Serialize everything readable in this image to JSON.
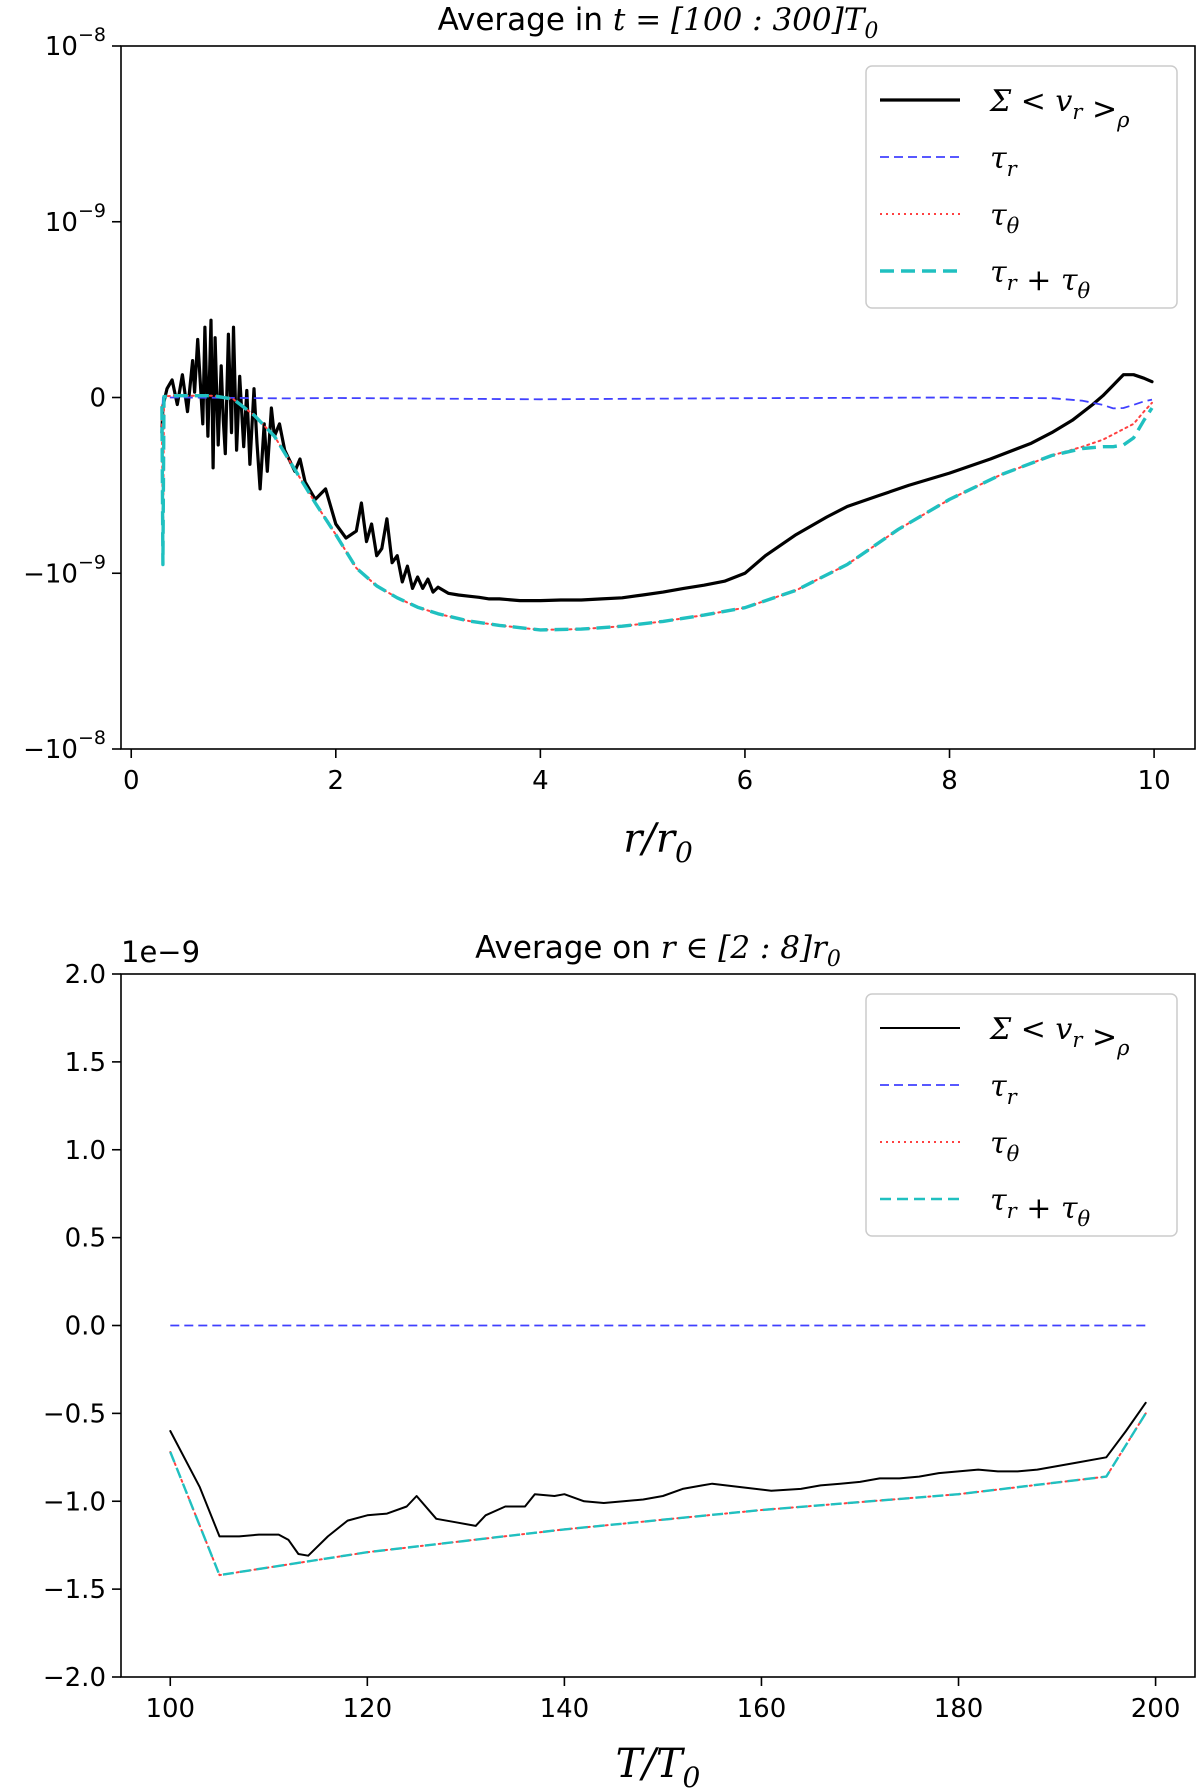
{
  "chart_data": [
    {
      "type": "line",
      "title_prefix": "Average in ",
      "title_math": "t = [100 : 300]T",
      "title_sub": "0",
      "xlabel_main": "r/r",
      "xlabel_sub": "0",
      "xlim": [
        -0.1,
        10.4
      ],
      "ylim": [
        -1e-08,
        1e-08
      ],
      "yscale": "symlog",
      "linthresh": 1e-09,
      "xticks": [
        0,
        2,
        4,
        6,
        8,
        10
      ],
      "xtick_labels": [
        "0",
        "2",
        "4",
        "6",
        "8",
        "10"
      ],
      "ytick_labels": [
        {
          "base": "10",
          "exp": "−8",
          "value": 1e-08
        },
        {
          "base": "10",
          "exp": "−9",
          "value": 1e-09
        },
        {
          "base": "0",
          "exp": "",
          "value": 0
        },
        {
          "base": "−10",
          "exp": "−9",
          "value": -1e-09
        },
        {
          "base": "−10",
          "exp": "−8",
          "value": -1e-08
        }
      ],
      "legend_position": "top-right",
      "legend": [
        {
          "label": "Σ < v_r >_ρ",
          "color": "#000000",
          "dash": "solid"
        },
        {
          "label": "τ_r",
          "color": "#4040ff",
          "dash": "dashed"
        },
        {
          "label": "τ_θ",
          "color": "#ff4040",
          "dash": "dotted"
        },
        {
          "label": "τ_r + τ_θ",
          "color": "#20c0c0",
          "dash": "dashed"
        }
      ],
      "series": [
        {
          "name": "Σ<v_r>_ρ",
          "color": "#000000",
          "x": [
            0.3,
            0.31,
            0.35,
            0.4,
            0.45,
            0.5,
            0.55,
            0.6,
            0.62,
            0.65,
            0.7,
            0.72,
            0.75,
            0.78,
            0.8,
            0.82,
            0.85,
            0.88,
            0.9,
            0.92,
            0.95,
            0.98,
            1.0,
            1.03,
            1.06,
            1.1,
            1.13,
            1.16,
            1.2,
            1.23,
            1.26,
            1.3,
            1.33,
            1.37,
            1.4,
            1.45,
            1.5,
            1.55,
            1.6,
            1.65,
            1.7,
            1.8,
            1.9,
            2.0,
            2.1,
            2.2,
            2.25,
            2.3,
            2.35,
            2.4,
            2.45,
            2.5,
            2.55,
            2.6,
            2.65,
            2.7,
            2.75,
            2.8,
            2.85,
            2.9,
            2.95,
            3.0,
            3.1,
            3.2,
            3.3,
            3.4,
            3.5,
            3.6,
            3.8,
            4.0,
            4.2,
            4.4,
            4.6,
            4.8,
            5.0,
            5.2,
            5.4,
            5.6,
            5.8,
            6.0,
            6.2,
            6.5,
            6.8,
            7.0,
            7.3,
            7.6,
            8.0,
            8.4,
            8.8,
            9.0,
            9.2,
            9.4,
            9.5,
            9.6,
            9.7,
            9.8,
            9.9,
            9.98
          ],
          "values": [
            -2e-10,
            -5e-11,
            5e-11,
            1e-10,
            -4e-11,
            1.3e-10,
            -8e-11,
            2.1e-10,
            3e-11,
            3.3e-10,
            -1.5e-10,
            4e-10,
            -2.2e-10,
            4.4e-10,
            -4e-10,
            3.4e-10,
            -2.7e-10,
            1.8e-10,
            -1.3e-10,
            -3.2e-10,
            3.6e-10,
            -2e-10,
            4e-10,
            -3e-10,
            1.2e-10,
            -2.8e-10,
            4e-11,
            -3.8e-10,
            5e-11,
            -2.6e-10,
            -5.2e-10,
            -1.5e-10,
            -4.2e-10,
            -6e-11,
            -2.2e-10,
            -1.5e-10,
            -3e-10,
            -3.6e-10,
            -4.2e-10,
            -3.5e-10,
            -4.8e-10,
            -5.8e-10,
            -5.2e-10,
            -7.2e-10,
            -8e-10,
            -7.6e-10,
            -6e-10,
            -8.2e-10,
            -7.2e-10,
            -9e-10,
            -8.6e-10,
            -6.9e-10,
            -9.4e-10,
            -9e-10,
            -1.12e-09,
            -9.6e-10,
            -1.22e-09,
            -1.05e-09,
            -1.22e-09,
            -1.08e-09,
            -1.28e-09,
            -1.2e-09,
            -1.3e-09,
            -1.33e-09,
            -1.35e-09,
            -1.37e-09,
            -1.4e-09,
            -1.4e-09,
            -1.43e-09,
            -1.43e-09,
            -1.42e-09,
            -1.42e-09,
            -1.4e-09,
            -1.38e-09,
            -1.33e-09,
            -1.28e-09,
            -1.22e-09,
            -1.17e-09,
            -1.11e-09,
            -1e-09,
            -9e-10,
            -7.8e-10,
            -6.8e-10,
            -6.2e-10,
            -5.6e-10,
            -5e-10,
            -4.3e-10,
            -3.5e-10,
            -2.6e-10,
            -2e-10,
            -1.3e-10,
            -4e-11,
            1e-11,
            7e-11,
            1.3e-10,
            1.3e-10,
            1.1e-10,
            9e-11
          ]
        },
        {
          "name": "τ_r",
          "color": "#4040ff",
          "x": [
            0.3,
            0.31,
            0.35,
            0.5,
            1.0,
            1.5,
            2.0,
            4.0,
            6.0,
            8.0,
            9.0,
            9.3,
            9.5,
            9.6,
            9.7,
            9.8,
            9.9,
            9.98
          ],
          "values": [
            -2e-10,
            0,
            0,
            0,
            -2e-12,
            -5e-12,
            -3e-12,
            -1e-11,
            -4e-12,
            0,
            -4e-12,
            -1.8e-11,
            -4.2e-11,
            -6.2e-11,
            -6e-11,
            -4.2e-11,
            -2.2e-11,
            -1.2e-11
          ]
        },
        {
          "name": "τ_θ",
          "color": "#ff4040",
          "x": [
            0.3,
            0.31,
            0.32,
            0.4,
            0.6,
            0.8,
            1.0,
            1.2,
            1.4,
            1.6,
            1.8,
            2.0,
            2.2,
            2.4,
            2.6,
            2.8,
            3.0,
            3.3,
            3.6,
            4.0,
            4.4,
            4.8,
            5.2,
            5.6,
            6.0,
            6.5,
            7.0,
            7.5,
            8.0,
            8.5,
            9.0,
            9.3,
            9.5,
            9.6,
            9.7,
            9.8,
            9.9,
            9.98
          ],
          "values": [
            -5e-11,
            -9.5e-10,
            5e-12,
            1e-11,
            1e-11,
            1e-11,
            -1e-11,
            -1e-10,
            -2.2e-10,
            -4.1e-10,
            -6e-10,
            -7.8e-10,
            -9.7e-10,
            -1.18e-09,
            -1.38e-09,
            -1.56e-09,
            -1.7e-09,
            -1.87e-09,
            -1.98e-09,
            -2.1e-09,
            -2.08e-09,
            -2e-09,
            -1.88e-09,
            -1.73e-09,
            -1.57e-09,
            -1.25e-09,
            -9.5e-10,
            -7.5e-10,
            -5.8e-10,
            -4.4e-10,
            -3.3e-10,
            -2.8e-10,
            -2.4e-10,
            -2.1e-10,
            -1.8e-10,
            -1.5e-10,
            -8e-11,
            -3e-11
          ]
        },
        {
          "name": "τ_r + τ_θ",
          "color": "#20c0c0",
          "x": [
            0.3,
            0.31,
            0.32,
            0.4,
            0.6,
            0.8,
            1.0,
            1.2,
            1.4,
            1.6,
            1.8,
            2.0,
            2.2,
            2.4,
            2.6,
            2.8,
            3.0,
            3.3,
            3.6,
            4.0,
            4.4,
            4.8,
            5.2,
            5.6,
            6.0,
            6.5,
            7.0,
            7.5,
            8.0,
            8.5,
            9.0,
            9.3,
            9.5,
            9.6,
            9.7,
            9.8,
            9.9,
            9.98
          ],
          "values": [
            -5e-11,
            -9.5e-10,
            5e-12,
            1e-11,
            1e-11,
            1e-11,
            -1e-11,
            -1e-10,
            -2.2e-10,
            -4.1e-10,
            -6e-10,
            -7.8e-10,
            -9.7e-10,
            -1.18e-09,
            -1.38e-09,
            -1.56e-09,
            -1.7e-09,
            -1.87e-09,
            -1.98e-09,
            -2.1e-09,
            -2.08e-09,
            -2e-09,
            -1.88e-09,
            -1.73e-09,
            -1.57e-09,
            -1.25e-09,
            -9.5e-10,
            -7.5e-10,
            -5.8e-10,
            -4.4e-10,
            -3.3e-10,
            -2.9e-10,
            -2.8e-10,
            -2.8e-10,
            -2.7e-10,
            -2.3e-10,
            -1.3e-10,
            -6e-11
          ]
        }
      ]
    },
    {
      "type": "line",
      "title_prefix": "Average on ",
      "title_math": "r ∈ [2 : 8]r",
      "title_sub": "0",
      "xlabel_main": "T/T",
      "xlabel_sub": "0",
      "offset_label": "1e−9",
      "xlim": [
        95,
        204
      ],
      "ylim": [
        -2.0,
        2.0
      ],
      "y_multiplier": 1e-09,
      "xticks": [
        100,
        120,
        140,
        160,
        180,
        200
      ],
      "xtick_labels": [
        "100",
        "120",
        "140",
        "160",
        "180",
        "200"
      ],
      "yticks": [
        2.0,
        1.5,
        1.0,
        0.5,
        0.0,
        -0.5,
        -1.0,
        -1.5,
        -2.0
      ],
      "ytick_labels": [
        "2.0",
        "1.5",
        "1.0",
        "0.5",
        "0.0",
        "−0.5",
        "−1.0",
        "−1.5",
        "−2.0"
      ],
      "legend_position": "top-right",
      "legend": [
        {
          "label": "Σ < v_r >_ρ",
          "color": "#000000",
          "dash": "solid"
        },
        {
          "label": "τ_r",
          "color": "#4040ff",
          "dash": "dashed"
        },
        {
          "label": "τ_θ",
          "color": "#ff4040",
          "dash": "dotted"
        },
        {
          "label": "τ_r + τ_θ",
          "color": "#20c0c0",
          "dash": "dashed"
        }
      ],
      "series": [
        {
          "name": "Σ<v_r>_ρ",
          "color": "#000000",
          "x": [
            100,
            103,
            105,
            107,
            109,
            111,
            112,
            113,
            114,
            116,
            118,
            120,
            122,
            124,
            125,
            127,
            129,
            131,
            132,
            134,
            136,
            137,
            139,
            140,
            142,
            144,
            146,
            148,
            150,
            152,
            154,
            155,
            158,
            161,
            164,
            166,
            168,
            170,
            172,
            174,
            176,
            178,
            180,
            182,
            184,
            186,
            188,
            190,
            192,
            195,
            197,
            199
          ],
          "values": [
            -0.6,
            -0.92,
            -1.2,
            -1.2,
            -1.19,
            -1.19,
            -1.22,
            -1.3,
            -1.31,
            -1.2,
            -1.11,
            -1.08,
            -1.07,
            -1.03,
            -0.97,
            -1.1,
            -1.12,
            -1.14,
            -1.08,
            -1.03,
            -1.03,
            -0.96,
            -0.97,
            -0.96,
            -1.0,
            -1.01,
            -1.0,
            -0.99,
            -0.97,
            -0.93,
            -0.91,
            -0.9,
            -0.92,
            -0.94,
            -0.93,
            -0.91,
            -0.9,
            -0.89,
            -0.87,
            -0.87,
            -0.86,
            -0.84,
            -0.83,
            -0.82,
            -0.83,
            -0.83,
            -0.82,
            -0.8,
            -0.78,
            -0.75,
            -0.6,
            -0.44
          ]
        },
        {
          "name": "τ_r",
          "color": "#4040ff",
          "x": [
            100,
            199
          ],
          "values": [
            0.0,
            0.0
          ]
        },
        {
          "name": "τ_θ",
          "color": "#ff4040",
          "x": [
            100,
            105,
            120,
            140,
            160,
            180,
            195,
            199
          ],
          "values": [
            -0.72,
            -1.42,
            -1.29,
            -1.16,
            -1.05,
            -0.96,
            -0.86,
            -0.5
          ]
        },
        {
          "name": "τ_r + τ_θ",
          "color": "#20c0c0",
          "x": [
            100,
            105,
            120,
            140,
            160,
            180,
            195,
            199
          ],
          "values": [
            -0.72,
            -1.42,
            -1.29,
            -1.16,
            -1.05,
            -0.96,
            -0.86,
            -0.5
          ]
        }
      ]
    }
  ]
}
